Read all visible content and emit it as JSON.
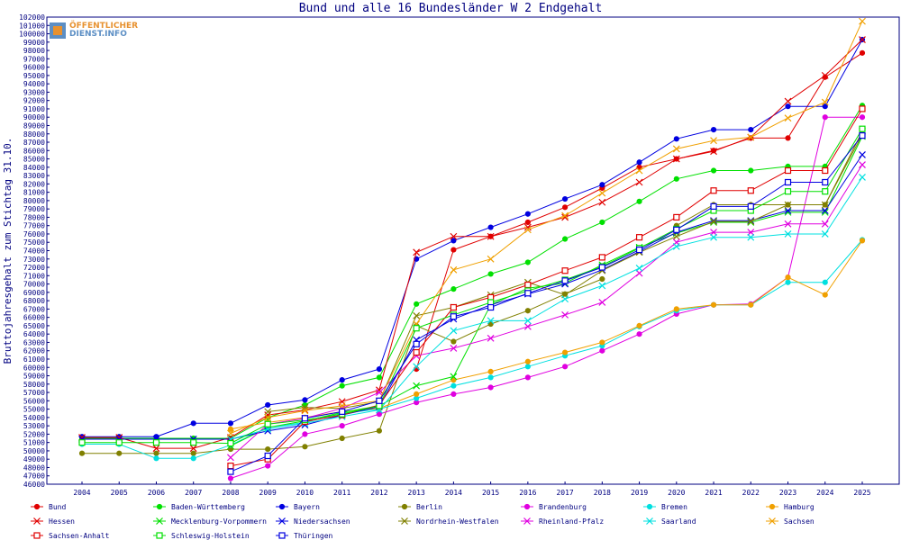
{
  "logo": {
    "line1": "ÖFFENTLICHER",
    "line2": "DIENST.INFO"
  },
  "chart_data": {
    "type": "line",
    "title": "Bund und alle 16 Bundesländer W 2 Endgehalt",
    "xlabel": "",
    "ylabel": "Bruttojahresgehalt zum Stichtag 31.10.",
    "ylim": [
      46000,
      102000
    ],
    "ytick_step": 1000,
    "grid": false,
    "legend_position": "bottom",
    "x": [
      2004,
      2005,
      2006,
      2007,
      2008,
      2009,
      2010,
      2011,
      2012,
      2013,
      2014,
      2015,
      2016,
      2017,
      2018,
      2019,
      2020,
      2021,
      2022,
      2023,
      2024,
      2025
    ],
    "series": [
      {
        "name": "Bund",
        "color": "#e00000",
        "marker": "dot",
        "values": [
          null,
          null,
          null,
          null,
          null,
          null,
          null,
          null,
          null,
          59800,
          74100,
          75700,
          77400,
          79200,
          81500,
          84000,
          85000,
          86000,
          87500,
          87500,
          94800,
          97700
        ]
      },
      {
        "name": "Baden-Württemberg",
        "color": "#00e000",
        "marker": "dot",
        "values": [
          51500,
          51500,
          51500,
          51500,
          51500,
          54000,
          55500,
          57800,
          58800,
          67600,
          69400,
          71200,
          72600,
          75400,
          77400,
          79900,
          82600,
          83600,
          83600,
          84100,
          84100,
          91400
        ]
      },
      {
        "name": "Bayern",
        "color": "#0000e0",
        "marker": "dot",
        "values": [
          51700,
          51700,
          51700,
          53300,
          53300,
          55500,
          56100,
          58500,
          59800,
          73000,
          75200,
          76800,
          78400,
          80200,
          81900,
          84600,
          87400,
          88500,
          88500,
          91300,
          91300,
          99300
        ]
      },
      {
        "name": "Berlin",
        "color": "#808000",
        "marker": "dot",
        "values": [
          49700,
          49700,
          49700,
          49700,
          50200,
          50200,
          50500,
          51500,
          52400,
          65000,
          63100,
          65200,
          66800,
          68800,
          70600,
          null,
          77000,
          79500,
          79500,
          79500,
          79500,
          87900
        ]
      },
      {
        "name": "Brandenburg",
        "color": "#e000e0",
        "marker": "dot",
        "values": [
          null,
          null,
          null,
          null,
          46700,
          48200,
          52000,
          53000,
          54400,
          55800,
          56800,
          57600,
          58800,
          60100,
          62000,
          64000,
          66400,
          67500,
          67600,
          70800,
          90000,
          90000
        ]
      },
      {
        "name": "Bremen",
        "color": "#00e0e0",
        "marker": "dot",
        "values": [
          50800,
          50800,
          49100,
          49100,
          50700,
          52800,
          53400,
          54500,
          55000,
          56300,
          57800,
          58800,
          60100,
          61400,
          62600,
          64900,
          66800,
          67500,
          67500,
          70200,
          70200,
          75300
        ]
      },
      {
        "name": "Hamburg",
        "color": "#f0a000",
        "marker": "dot",
        "values": [
          null,
          null,
          null,
          null,
          52600,
          53400,
          54000,
          54700,
          55100,
          56800,
          58500,
          59500,
          60700,
          61800,
          63000,
          65000,
          67000,
          67500,
          67500,
          70800,
          68700,
          75200
        ]
      },
      {
        "name": "Hessen",
        "color": "#e00000",
        "marker": "x",
        "values": [
          51600,
          51600,
          50300,
          50300,
          51600,
          54300,
          54900,
          55900,
          57300,
          73800,
          75700,
          75700,
          76800,
          78000,
          79800,
          82200,
          85000,
          85900,
          87600,
          91900,
          95000,
          99300
        ]
      },
      {
        "name": "Mecklenburg-Vorpommern",
        "color": "#00e000",
        "marker": "x",
        "values": [
          null,
          null,
          null,
          null,
          50600,
          52800,
          53600,
          54600,
          55400,
          57800,
          58900,
          67500,
          69500,
          70100,
          72300,
          74400,
          76100,
          77400,
          77400,
          78600,
          78600,
          87700
        ]
      },
      {
        "name": "Niedersachsen",
        "color": "#0000e0",
        "marker": "x",
        "values": [
          51400,
          51400,
          51400,
          51400,
          51400,
          52400,
          53100,
          54300,
          55300,
          63300,
          65800,
          67500,
          68800,
          70000,
          71700,
          73900,
          76200,
          77600,
          77600,
          78800,
          78800,
          85500
        ]
      },
      {
        "name": "Nordrhein-Westfalen",
        "color": "#808000",
        "marker": "x",
        "values": [
          null,
          null,
          null,
          null,
          null,
          54700,
          55200,
          55100,
          55900,
          66200,
          67200,
          68700,
          70200,
          68700,
          71600,
          73800,
          75700,
          77500,
          77500,
          79500,
          79500,
          88300
        ]
      },
      {
        "name": "Rheinland-Pfalz",
        "color": "#e000e0",
        "marker": "x",
        "values": [
          null,
          null,
          null,
          null,
          49200,
          53200,
          53900,
          55100,
          57000,
          61400,
          62300,
          63500,
          64900,
          66300,
          67800,
          71300,
          75000,
          76200,
          76200,
          77200,
          77200,
          84300
        ]
      },
      {
        "name": "Saarland",
        "color": "#00e0e0",
        "marker": "x",
        "values": [
          null,
          null,
          null,
          null,
          51400,
          52600,
          53300,
          54100,
          54900,
          60100,
          64400,
          65600,
          65600,
          68200,
          69800,
          71900,
          74500,
          75600,
          75600,
          76000,
          76000,
          82800
        ]
      },
      {
        "name": "Sachsen",
        "color": "#f0a000",
        "marker": "x",
        "values": [
          null,
          null,
          null,
          null,
          52100,
          54000,
          54800,
          55400,
          56000,
          65200,
          71700,
          73000,
          76500,
          78200,
          80900,
          83600,
          86200,
          87200,
          87600,
          89900,
          91800,
          101500
        ]
      },
      {
        "name": "Sachsen-Anhalt",
        "color": "#e00000",
        "marker": "square",
        "values": [
          null,
          null,
          null,
          null,
          48200,
          49000,
          53500,
          54300,
          55500,
          61800,
          67200,
          68400,
          69900,
          71600,
          73200,
          75600,
          78000,
          81200,
          81200,
          83600,
          83600,
          91000
        ]
      },
      {
        "name": "Schleswig-Holstein",
        "color": "#00e000",
        "marker": "square",
        "values": [
          51000,
          51000,
          51000,
          51000,
          50900,
          53200,
          53700,
          54400,
          55400,
          64700,
          66300,
          67800,
          69200,
          70500,
          72100,
          74300,
          76600,
          78800,
          78800,
          81100,
          81100,
          88600
        ]
      },
      {
        "name": "Thüringen",
        "color": "#0000e0",
        "marker": "square",
        "values": [
          null,
          null,
          null,
          null,
          47500,
          49400,
          53900,
          54700,
          56000,
          62800,
          66100,
          67200,
          68900,
          70400,
          72000,
          74100,
          76500,
          79300,
          79300,
          82200,
          82200,
          87800
        ]
      }
    ]
  }
}
